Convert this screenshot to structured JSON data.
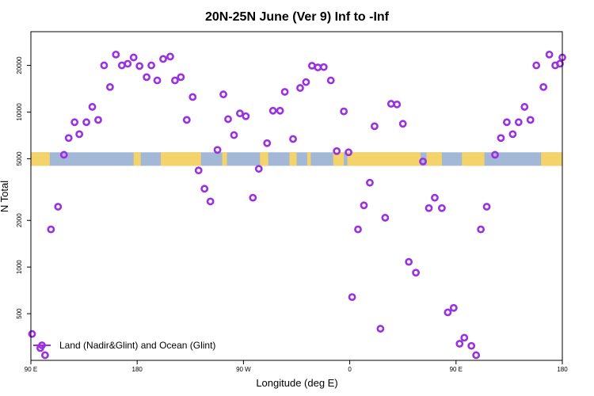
{
  "chart_data": {
    "type": "scatter",
    "title": "20N-25N June (Ver 9)   Inf to -Inf",
    "xlabel": "Longitude (deg E)",
    "ylabel": "N Total",
    "y_scale": "log",
    "xlim": [
      90,
      540
    ],
    "ylim": [
      250,
      33000
    ],
    "x_ticks": [
      {
        "value": 90,
        "label": "90 E"
      },
      {
        "value": 180,
        "label": "180"
      },
      {
        "value": 270,
        "label": "90 W"
      },
      {
        "value": 360,
        "label": "0"
      },
      {
        "value": 450,
        "label": "90 E"
      },
      {
        "value": 540,
        "label": "180"
      }
    ],
    "y_ticks": [
      {
        "value": 500,
        "label": "500"
      },
      {
        "value": 1000,
        "label": "1000"
      },
      {
        "value": 2000,
        "label": "2000"
      },
      {
        "value": 5000,
        "label": "5000"
      },
      {
        "value": 10000,
        "label": "10000"
      },
      {
        "value": 20000,
        "label": "20000"
      }
    ],
    "colors": {
      "marker": "#9b30e0",
      "ocean": "#a3b7d6",
      "land": "#f4d36b"
    },
    "land_ocean_band": {
      "y_range": [
        4500,
        5500
      ],
      "land_segments": [
        [
          90,
          106
        ],
        [
          177,
          183
        ],
        [
          200,
          234
        ],
        [
          252,
          256
        ],
        [
          284,
          291
        ],
        [
          309,
          315
        ],
        [
          324,
          327
        ],
        [
          346,
          355
        ],
        [
          358,
          420
        ],
        [
          425,
          438
        ],
        [
          455,
          474
        ],
        [
          522,
          540
        ]
      ]
    },
    "legend": {
      "label": "Land (Nadir&Glint) and Ocean (Glint)",
      "position": "bottom-left"
    },
    "series": [
      {
        "name": "Land (Nadir&Glint) and Ocean (Glint)",
        "points": [
          [
            91,
            370
          ],
          [
            98,
            300
          ],
          [
            102,
            270
          ],
          [
            107,
            1750
          ],
          [
            113,
            2450
          ],
          [
            118,
            5300
          ],
          [
            122,
            6800
          ],
          [
            127,
            8600
          ],
          [
            131,
            7200
          ],
          [
            137,
            8600
          ],
          [
            142,
            10800
          ],
          [
            147,
            8900
          ],
          [
            152,
            20000
          ],
          [
            157,
            14500
          ],
          [
            162,
            23500
          ],
          [
            167,
            20000
          ],
          [
            172,
            20500
          ],
          [
            177,
            22500
          ],
          [
            182,
            19800
          ],
          [
            188,
            16800
          ],
          [
            192,
            20000
          ],
          [
            197,
            16000
          ],
          [
            202,
            22000
          ],
          [
            208,
            22800
          ],
          [
            212,
            16000
          ],
          [
            217,
            16800
          ],
          [
            222,
            8900
          ],
          [
            227,
            12500
          ],
          [
            232,
            4200
          ],
          [
            237,
            3200
          ],
          [
            242,
            2650
          ],
          [
            248,
            5700
          ],
          [
            253,
            13000
          ],
          [
            257,
            9000
          ],
          [
            262,
            7100
          ],
          [
            267,
            9800
          ],
          [
            272,
            9400
          ],
          [
            278,
            2800
          ],
          [
            283,
            4300
          ],
          [
            290,
            6300
          ],
          [
            295,
            10200
          ],
          [
            301,
            10200
          ],
          [
            305,
            13500
          ],
          [
            312,
            6700
          ],
          [
            318,
            14300
          ],
          [
            323,
            15600
          ],
          [
            328,
            19900
          ],
          [
            333,
            19400
          ],
          [
            338,
            19500
          ],
          [
            344,
            16000
          ],
          [
            349,
            5600
          ],
          [
            355,
            10100
          ],
          [
            359,
            5500
          ],
          [
            362,
            640
          ],
          [
            367,
            1750
          ],
          [
            372,
            2500
          ],
          [
            377,
            3500
          ],
          [
            381,
            8100
          ],
          [
            386,
            400
          ],
          [
            390,
            2080
          ],
          [
            395,
            11300
          ],
          [
            400,
            11200
          ],
          [
            405,
            8400
          ],
          [
            410,
            1080
          ],
          [
            416,
            920
          ],
          [
            422,
            4800
          ],
          [
            427,
            2400
          ],
          [
            432,
            2800
          ],
          [
            438,
            2400
          ],
          [
            443,
            510
          ],
          [
            448,
            545
          ],
          [
            453,
            320
          ],
          [
            457,
            350
          ],
          [
            463,
            310
          ],
          [
            467,
            270
          ],
          [
            471,
            1750
          ],
          [
            476,
            2450
          ],
          [
            483,
            5300
          ],
          [
            488,
            6800
          ],
          [
            493,
            8600
          ],
          [
            498,
            7200
          ],
          [
            503,
            8600
          ],
          [
            508,
            10800
          ],
          [
            513,
            8900
          ],
          [
            518,
            20000
          ],
          [
            524,
            14500
          ],
          [
            529,
            23500
          ],
          [
            534,
            20000
          ],
          [
            538,
            20500
          ],
          [
            540,
            22500
          ]
        ]
      }
    ]
  }
}
